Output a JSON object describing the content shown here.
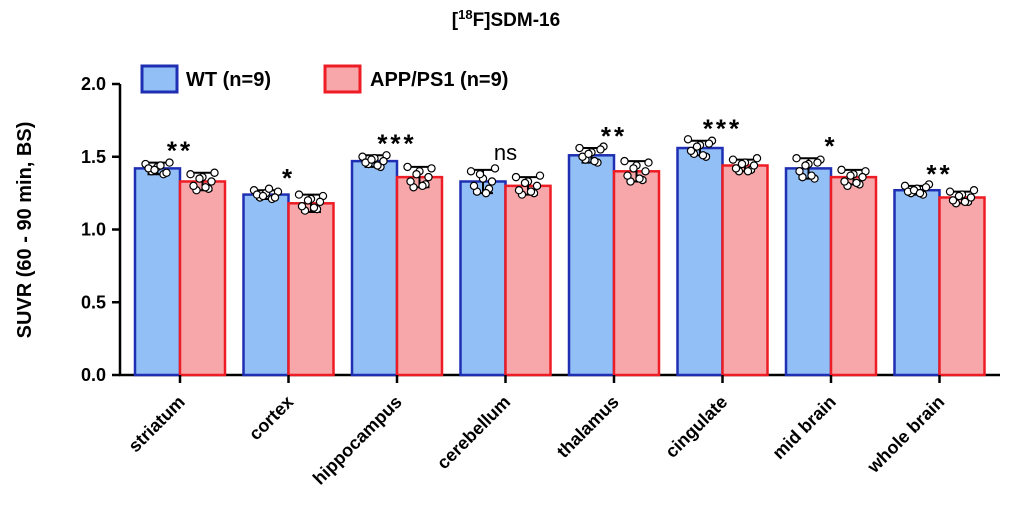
{
  "chart_data": {
    "type": "bar",
    "title": "[18F]SDM-16",
    "title_parts": {
      "prefix": "[",
      "superscript": "18",
      "suffix": "F]SDM-16"
    },
    "xlabel": "",
    "ylabel": "SUVR (60 - 90 min, BS)",
    "ylim": [
      0,
      2.0
    ],
    "yticks": [
      "0.0",
      "0.5",
      "1.0",
      "1.5",
      "2.0"
    ],
    "legend_position": "top-left",
    "categories": [
      "striatum",
      "cortex",
      "hippocampus",
      "cerebellum",
      "thalamus",
      "cingulate",
      "mid brain",
      "whole brain"
    ],
    "series": [
      {
        "name": "WT (n=9)",
        "fill": "#92bff5",
        "stroke": "#1f2fb3",
        "values": [
          1.42,
          1.24,
          1.47,
          1.33,
          1.51,
          1.56,
          1.42,
          1.27
        ],
        "sd": [
          0.04,
          0.03,
          0.04,
          0.08,
          0.05,
          0.05,
          0.07,
          0.03
        ],
        "points": [
          [
            1.45,
            1.4,
            1.43,
            1.38,
            1.46,
            1.42,
            1.41,
            1.44,
            1.39
          ],
          [
            1.27,
            1.22,
            1.25,
            1.21,
            1.26,
            1.24,
            1.23,
            1.28,
            1.22
          ],
          [
            1.5,
            1.45,
            1.49,
            1.43,
            1.51,
            1.46,
            1.48,
            1.44,
            1.47
          ],
          [
            1.4,
            1.26,
            1.35,
            1.28,
            1.42,
            1.3,
            1.38,
            1.25,
            1.33
          ],
          [
            1.56,
            1.48,
            1.53,
            1.46,
            1.57,
            1.5,
            1.52,
            1.47,
            1.55
          ],
          [
            1.62,
            1.52,
            1.58,
            1.5,
            1.61,
            1.54,
            1.57,
            1.51,
            1.59
          ],
          [
            1.49,
            1.36,
            1.45,
            1.35,
            1.48,
            1.4,
            1.44,
            1.37,
            1.46
          ],
          [
            1.3,
            1.25,
            1.28,
            1.24,
            1.31,
            1.26,
            1.27,
            1.25,
            1.29
          ]
        ]
      },
      {
        "name": "APP/PS1 (n=9)",
        "fill": "#f7a6a9",
        "stroke": "#ee1c24",
        "values": [
          1.33,
          1.18,
          1.36,
          1.3,
          1.4,
          1.44,
          1.36,
          1.22
        ],
        "sd": [
          0.06,
          0.06,
          0.07,
          0.06,
          0.07,
          0.04,
          0.05,
          0.04
        ],
        "points": [
          [
            1.38,
            1.27,
            1.36,
            1.28,
            1.39,
            1.3,
            1.35,
            1.29,
            1.33
          ],
          [
            1.24,
            1.13,
            1.21,
            1.14,
            1.23,
            1.16,
            1.2,
            1.15,
            1.19
          ],
          [
            1.43,
            1.29,
            1.4,
            1.31,
            1.42,
            1.33,
            1.38,
            1.3,
            1.36
          ],
          [
            1.36,
            1.24,
            1.33,
            1.25,
            1.37,
            1.27,
            1.32,
            1.26,
            1.3
          ],
          [
            1.47,
            1.33,
            1.44,
            1.34,
            1.46,
            1.37,
            1.42,
            1.35,
            1.4
          ],
          [
            1.48,
            1.4,
            1.46,
            1.41,
            1.49,
            1.42,
            1.45,
            1.4,
            1.44
          ],
          [
            1.41,
            1.3,
            1.38,
            1.31,
            1.4,
            1.33,
            1.37,
            1.32,
            1.36
          ],
          [
            1.26,
            1.18,
            1.24,
            1.19,
            1.27,
            1.2,
            1.23,
            1.19,
            1.22
          ]
        ]
      }
    ],
    "significance": [
      "**",
      "*",
      "***",
      "ns",
      "**",
      "***",
      "*",
      "**"
    ]
  }
}
